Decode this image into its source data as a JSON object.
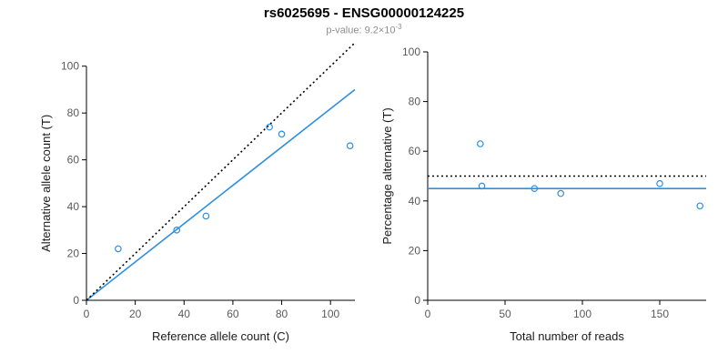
{
  "header": {
    "title": "rs6025695 - ENSG00000124225",
    "pvalue_label": "p-value: ",
    "pvalue_base": "9.2×10",
    "pvalue_exponent": "-3"
  },
  "colors": {
    "points": "#2d8fe0",
    "fit_line": "#2d8fe0",
    "reference_line": "#000000",
    "axis": "#000000",
    "tick_label": "#5a5a5a",
    "axis_label": "#1a1a1a",
    "subtitle": "#8e8e8e"
  },
  "chart_data": [
    {
      "type": "scatter",
      "title": "Reference vs alternative allele counts",
      "xlabel": "Reference allele count (C)",
      "ylabel": "Alternative allele count (T)",
      "xlim": [
        0,
        110
      ],
      "ylim": [
        0,
        110
      ],
      "xticks": [
        0,
        20,
        40,
        60,
        80,
        100
      ],
      "yticks": [
        0,
        20,
        40,
        60,
        80,
        100
      ],
      "grid": false,
      "points": [
        [
          13,
          22
        ],
        [
          37,
          30
        ],
        [
          49,
          36
        ],
        [
          75,
          74
        ],
        [
          80,
          71
        ],
        [
          108,
          66
        ]
      ],
      "lines": [
        {
          "name": "fit-line",
          "role": "fit",
          "style": "solid",
          "x": [
            0,
            110
          ],
          "y": [
            0,
            90
          ]
        },
        {
          "name": "identity-line",
          "role": "reference",
          "style": "dotted",
          "x": [
            0,
            110
          ],
          "y": [
            0,
            110
          ]
        }
      ]
    },
    {
      "type": "scatter",
      "title": "Percentage alternative vs coverage",
      "xlabel": "Total number of reads",
      "ylabel": "Percentage alternative (T)",
      "xlim": [
        0,
        180
      ],
      "ylim": [
        0,
        100
      ],
      "xticks": [
        0,
        50,
        100,
        150
      ],
      "yticks": [
        0,
        20,
        40,
        60,
        80,
        100
      ],
      "grid": false,
      "points": [
        [
          34,
          63
        ],
        [
          35,
          46
        ],
        [
          69,
          45
        ],
        [
          86,
          43
        ],
        [
          150,
          47
        ],
        [
          176,
          38
        ]
      ],
      "lines": [
        {
          "name": "expected-50-line",
          "role": "reference",
          "style": "dotted",
          "x": [
            0,
            180
          ],
          "y": [
            50,
            50
          ]
        },
        {
          "name": "mean-percentage-line",
          "role": "fit",
          "style": "solid",
          "x": [
            0,
            180
          ],
          "y": [
            45,
            45
          ]
        }
      ]
    }
  ]
}
